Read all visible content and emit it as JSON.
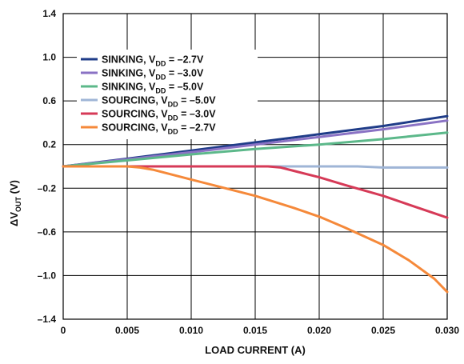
{
  "chart_data": {
    "type": "line",
    "xlabel": "LOAD CURRENT (A)",
    "ylabel_main": "ΔV",
    "ylabel_sub": "OUT",
    "ylabel_unit": " (V)",
    "xlim": [
      0,
      0.03
    ],
    "ylim": [
      -1.4,
      1.4
    ],
    "x_ticks": [
      "0",
      "0.005",
      "0.010",
      "0.015",
      "0.020",
      "0.025",
      "0.030"
    ],
    "y_ticks": [
      "1.4",
      "1.0",
      "0.6",
      "0.2",
      "–0.2",
      "–0.6",
      "–1.0",
      "–1.4"
    ],
    "grid": true,
    "legend_position": "top-left",
    "series": [
      {
        "label_main": "SINKING, V",
        "label_sub": "DD",
        "label_value": " = –2.7V",
        "color": "#1f3c88",
        "x": [
          0,
          0.005,
          0.01,
          0.015,
          0.02,
          0.025,
          0.03
        ],
        "y": [
          0,
          0.07,
          0.145,
          0.22,
          0.295,
          0.37,
          0.46
        ]
      },
      {
        "label_main": "SINKING, V",
        "label_sub": "DD",
        "label_value": " = –3.0V",
        "color": "#8a72c4",
        "x": [
          0,
          0.005,
          0.01,
          0.015,
          0.02,
          0.025,
          0.03
        ],
        "y": [
          0,
          0.065,
          0.13,
          0.2,
          0.27,
          0.34,
          0.42
        ]
      },
      {
        "label_main": "SINKING, V",
        "label_sub": "DD",
        "label_value": " = –5.0V",
        "color": "#5cb88a",
        "x": [
          0,
          0.005,
          0.01,
          0.015,
          0.02,
          0.025,
          0.03
        ],
        "y": [
          0,
          0.055,
          0.11,
          0.16,
          0.2,
          0.25,
          0.31
        ]
      },
      {
        "label_main": "SOURCING, V",
        "label_sub": "DD",
        "label_value": " = –5.0V",
        "color": "#9fb5d6",
        "x": [
          0,
          0.005,
          0.01,
          0.015,
          0.02,
          0.023,
          0.025,
          0.03
        ],
        "y": [
          0,
          0,
          0,
          0,
          0,
          0,
          -0.01,
          -0.01
        ]
      },
      {
        "label_main": "SOURCING, V",
        "label_sub": "DD",
        "label_value": " = –3.0V",
        "color": "#d63a57",
        "x": [
          0,
          0.005,
          0.01,
          0.015,
          0.016,
          0.017,
          0.018,
          0.02,
          0.022,
          0.025,
          0.027,
          0.03
        ],
        "y": [
          0,
          0,
          0,
          0,
          0,
          -0.01,
          -0.04,
          -0.1,
          -0.17,
          -0.27,
          -0.35,
          -0.47
        ]
      },
      {
        "label_main": "SOURCING, V",
        "label_sub": "DD",
        "label_value": " = –2.7V",
        "color": "#f5893a",
        "x": [
          0,
          0.005,
          0.006,
          0.007,
          0.008,
          0.01,
          0.012,
          0.015,
          0.018,
          0.02,
          0.022,
          0.025,
          0.027,
          0.029,
          0.03
        ],
        "y": [
          0,
          0,
          -0.01,
          -0.03,
          -0.06,
          -0.12,
          -0.18,
          -0.27,
          -0.38,
          -0.46,
          -0.56,
          -0.72,
          -0.86,
          -1.03,
          -1.15
        ]
      }
    ]
  }
}
